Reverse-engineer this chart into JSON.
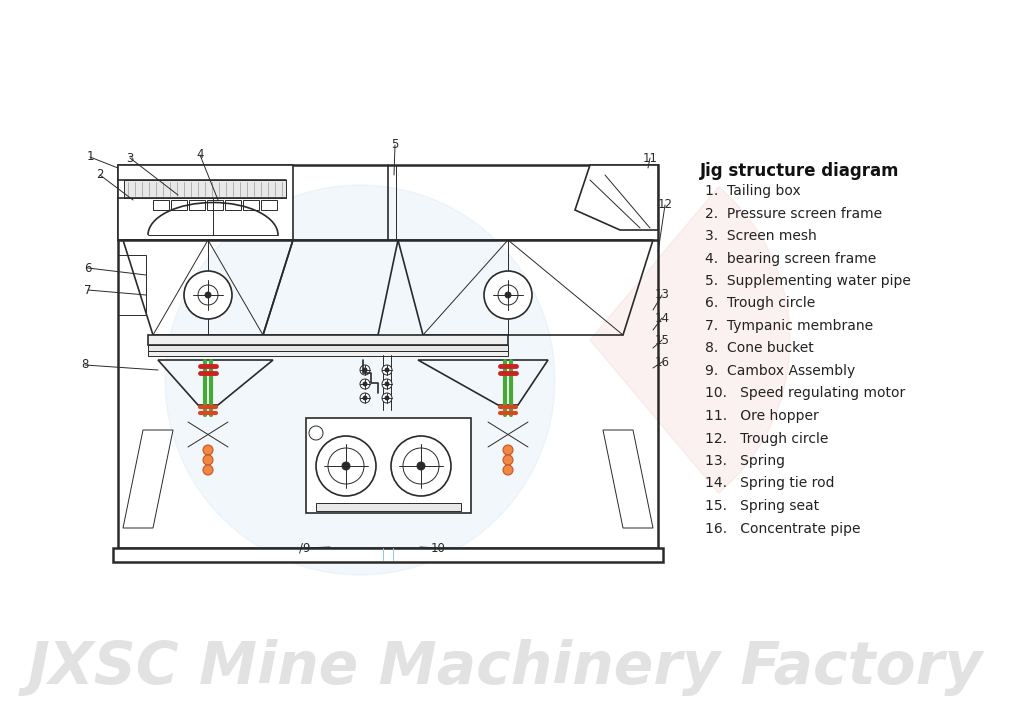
{
  "title": "Jig structure diagram",
  "legend_items": [
    "1.  Tailing box",
    "2.  Pressure screen frame",
    "3.  Screen mesh",
    "4.  bearing screen frame",
    "5.  Supplementing water pipe",
    "6.  Trough circle",
    "7.  Tympanic membrane",
    "8.  Cone bucket",
    "9.  Cambox Assembly",
    "10.   Speed regulating motor",
    "11.   Ore hopper",
    "12.   Trough circle",
    "13.   Spring",
    "14.   Spring tie rod",
    "15.   Spring seat",
    "16.   Concentrate pipe"
  ],
  "watermark": "JXSC Mine Machinery Factory",
  "bg_color": "#ffffff",
  "line_color": "#2a2a2a",
  "lw_main": 1.8,
  "lw_med": 1.2,
  "lw_thin": 0.7
}
